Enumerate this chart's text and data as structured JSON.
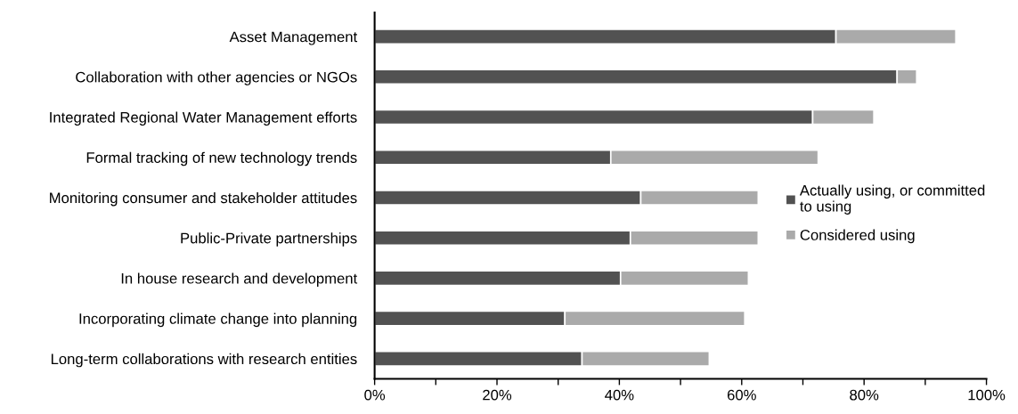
{
  "chart_data": {
    "type": "bar",
    "orientation": "horizontal",
    "stacked": true,
    "categories": [
      "Asset Management",
      "Collaboration with other agencies or NGOs",
      "Integrated Regional Water Management efforts",
      "Formal tracking of new technology trends",
      "Monitoring consumer and stakeholder attitudes",
      "Public-Private partnerships",
      "In house research and development",
      "Incorporating climate change into planning",
      "Long-term collaborations with research entities"
    ],
    "series": [
      {
        "name": "Actually using, or committed\nto using",
        "color": "#525252",
        "values": [
          75.4,
          85.4,
          71.6,
          38.6,
          43.5,
          41.8,
          40.2,
          31.1,
          33.9
        ]
      },
      {
        "name": "Considered using",
        "color": "#aaaaaa",
        "values": [
          19.6,
          3.2,
          10.0,
          33.9,
          19.2,
          20.9,
          20.9,
          29.4,
          20.8
        ]
      }
    ],
    "xlim": [
      0,
      100
    ],
    "xticks": [
      {
        "value": 0,
        "label": "0%"
      },
      {
        "value": 10,
        "label": null
      },
      {
        "value": 20,
        "label": "20%"
      },
      {
        "value": 30,
        "label": null
      },
      {
        "value": 40,
        "label": "40%"
      },
      {
        "value": 50,
        "label": null
      },
      {
        "value": 60,
        "label": "60%"
      },
      {
        "value": 70,
        "label": null
      },
      {
        "value": 80,
        "label": "80%"
      },
      {
        "value": 90,
        "label": null
      },
      {
        "value": 100,
        "label": "100%"
      }
    ],
    "grid": false,
    "legend": "right",
    "marker": "square"
  }
}
